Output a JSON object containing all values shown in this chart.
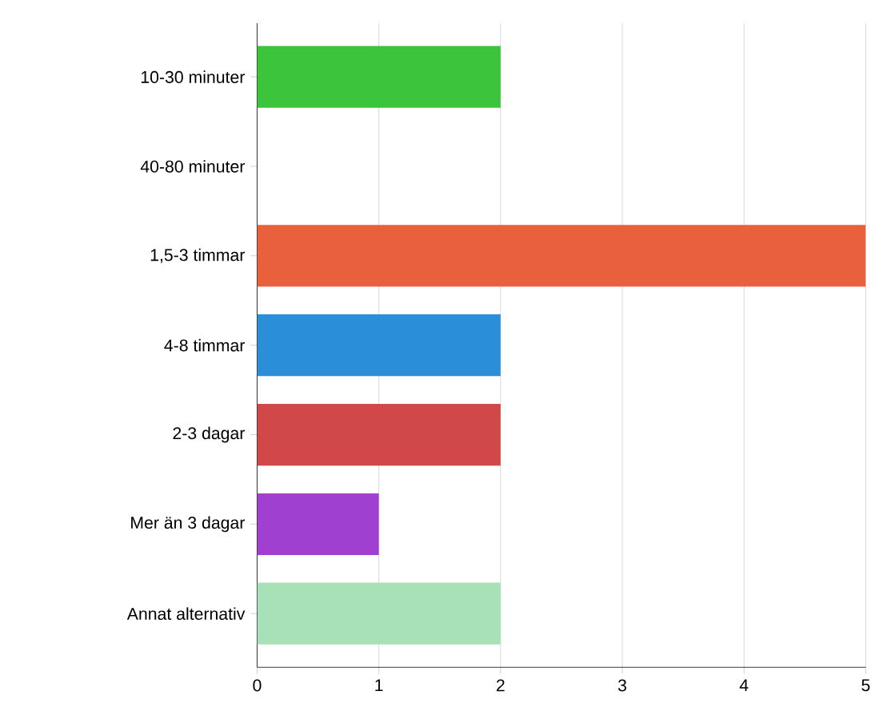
{
  "chart_data": {
    "type": "bar",
    "orientation": "horizontal",
    "categories": [
      "10-30 minuter",
      "40-80 minuter",
      "1,5-3 timmar",
      "4-8 timmar",
      "2-3 dagar",
      "Mer än 3 dagar",
      "Annat alternativ"
    ],
    "values": [
      2,
      0,
      5,
      2,
      2,
      1,
      2
    ],
    "colors": [
      "#3cc43c",
      "#999999",
      "#e8603c",
      "#2a8fd8",
      "#d04848",
      "#a040d0",
      "#a8e0b8"
    ],
    "xlim": [
      0,
      5
    ],
    "xticks": [
      0,
      1,
      2,
      3,
      4,
      5
    ],
    "grid": "x"
  }
}
